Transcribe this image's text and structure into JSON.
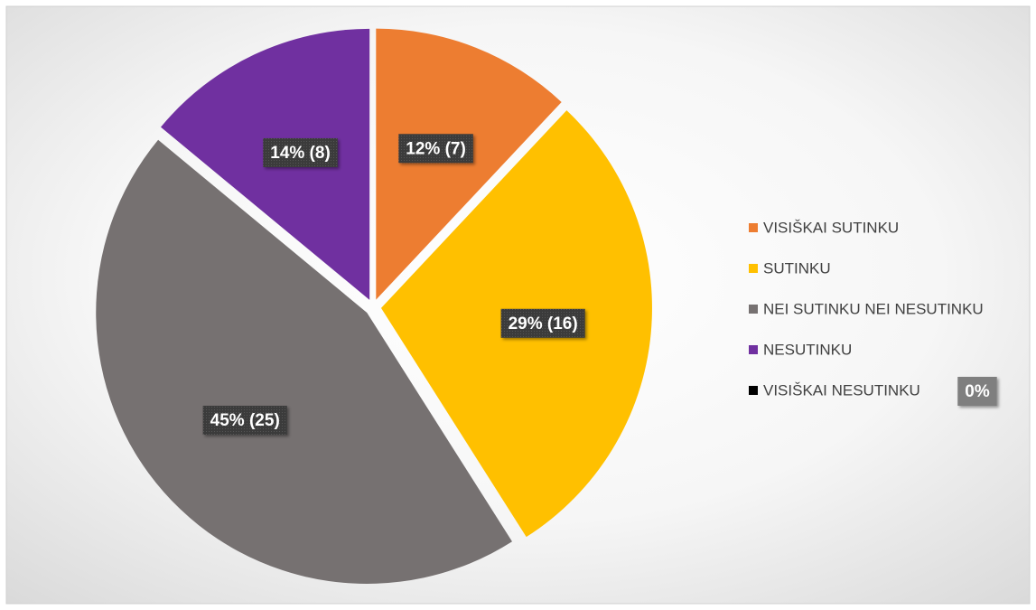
{
  "chart_data": {
    "type": "pie",
    "categories": [
      "VISIŠKAI SUTINKU",
      "SUTINKU",
      "NEI SUTINKU NEI NESUTINKU",
      "NESUTINKU",
      "VISIŠKAI NESUTINKU"
    ],
    "values": [
      12,
      29,
      45,
      14,
      0
    ],
    "value_labels": [
      "12% (7)",
      "29% (16)",
      "45% (25)",
      "14% (8)",
      "0%"
    ],
    "colors": [
      "#ED7D31",
      "#FFC000",
      "#767171",
      "#7030A0",
      "#000000"
    ],
    "legend": "right"
  }
}
